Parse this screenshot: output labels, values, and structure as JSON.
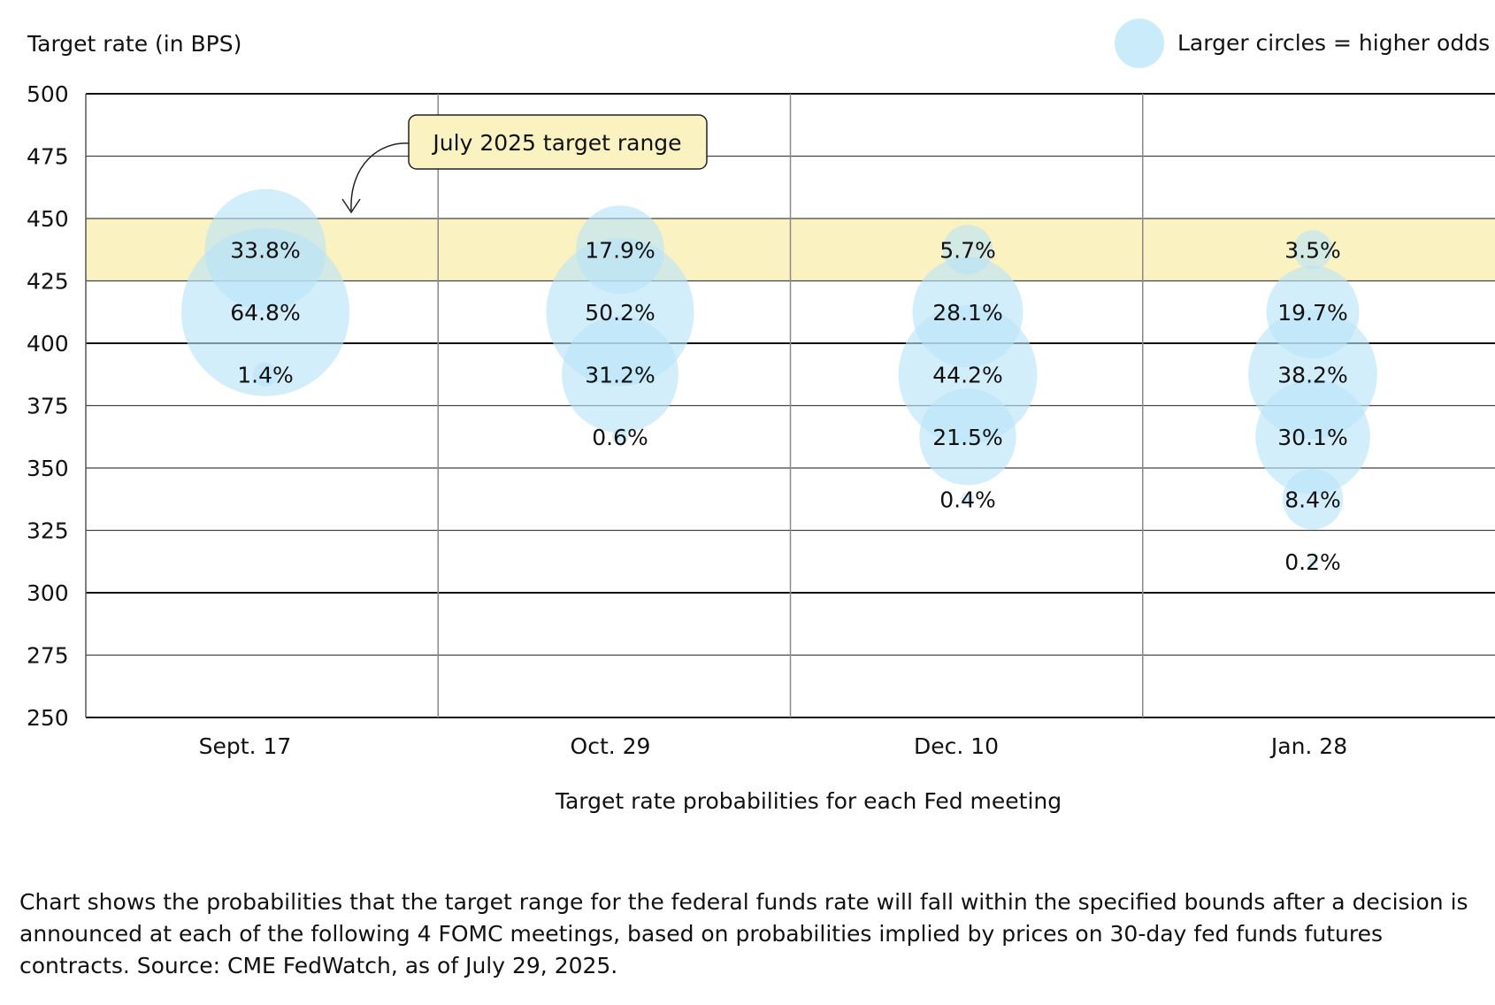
{
  "chart_data": {
    "type": "bubble",
    "ylabel": "Target rate (in BPS)",
    "xlabel": "Target rate probabilities for each Fed meeting",
    "ylim": [
      250,
      500
    ],
    "yticks": [
      500,
      475,
      450,
      425,
      400,
      375,
      350,
      325,
      300,
      275,
      250
    ],
    "categories": [
      "Sept. 17",
      "Oct. 29",
      "Dec. 10",
      "Jan. 28"
    ],
    "highlight_band": {
      "from": 425,
      "to": 450,
      "label": "July 2025 target range",
      "color": "#fbf2c2"
    },
    "legend": {
      "text": "Larger circles = higher odds",
      "position": "top-right"
    },
    "bubble_color": "#b8e4f8",
    "points": [
      {
        "meeting": "Sept. 17",
        "rate": 437.5,
        "prob": 33.8,
        "label": "33.8%"
      },
      {
        "meeting": "Sept. 17",
        "rate": 412.5,
        "prob": 64.8,
        "label": "64.8%"
      },
      {
        "meeting": "Sept. 17",
        "rate": 387.5,
        "prob": 1.4,
        "label": "1.4%"
      },
      {
        "meeting": "Oct. 29",
        "rate": 437.5,
        "prob": 17.9,
        "label": "17.9%"
      },
      {
        "meeting": "Oct. 29",
        "rate": 412.5,
        "prob": 50.2,
        "label": "50.2%"
      },
      {
        "meeting": "Oct. 29",
        "rate": 387.5,
        "prob": 31.2,
        "label": "31.2%"
      },
      {
        "meeting": "Oct. 29",
        "rate": 362.5,
        "prob": 0.6,
        "label": "0.6%"
      },
      {
        "meeting": "Dec. 10",
        "rate": 437.5,
        "prob": 5.7,
        "label": "5.7%"
      },
      {
        "meeting": "Dec. 10",
        "rate": 412.5,
        "prob": 28.1,
        "label": "28.1%"
      },
      {
        "meeting": "Dec. 10",
        "rate": 387.5,
        "prob": 44.2,
        "label": "44.2%"
      },
      {
        "meeting": "Dec. 10",
        "rate": 362.5,
        "prob": 21.5,
        "label": "21.5%"
      },
      {
        "meeting": "Dec. 10",
        "rate": 337.5,
        "prob": 0.4,
        "label": "0.4%"
      },
      {
        "meeting": "Jan. 28",
        "rate": 437.5,
        "prob": 3.5,
        "label": "3.5%"
      },
      {
        "meeting": "Jan. 28",
        "rate": 412.5,
        "prob": 19.7,
        "label": "19.7%"
      },
      {
        "meeting": "Jan. 28",
        "rate": 387.5,
        "prob": 38.2,
        "label": "38.2%"
      },
      {
        "meeting": "Jan. 28",
        "rate": 362.5,
        "prob": 30.1,
        "label": "30.1%"
      },
      {
        "meeting": "Jan. 28",
        "rate": 337.5,
        "prob": 8.4,
        "label": "8.4%"
      },
      {
        "meeting": "Jan. 28",
        "rate": 312.5,
        "prob": 0.2,
        "label": "0.2%"
      }
    ]
  },
  "footnote": "Chart shows the probabilities that the target range for the federal funds rate will fall within the specified bounds after a decision is announced at each of the following 4 FOMC meetings, based on probabilities implied by prices on 30-day fed funds futures contracts. Source: CME FedWatch, as of July 29, 2025."
}
